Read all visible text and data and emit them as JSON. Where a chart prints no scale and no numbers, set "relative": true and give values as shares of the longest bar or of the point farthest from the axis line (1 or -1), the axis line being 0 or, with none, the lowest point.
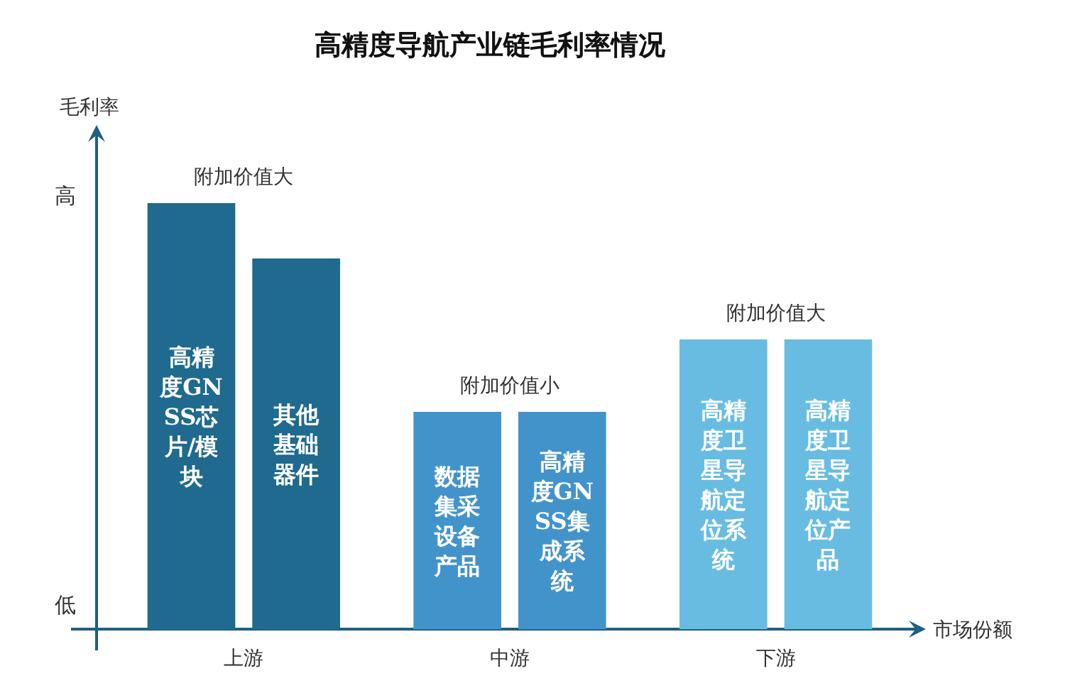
{
  "chart_data": {
    "type": "bar",
    "title": "高精度导航产业链毛利率情况",
    "xlabel": "市场份额",
    "ylabel": "毛利率",
    "relative": true,
    "categories": [
      "高精度GNSS芯片/模块",
      "其他基础器件",
      "数据集采设备产品",
      "高精度GNSS集成系统",
      "高精度卫星导航定位系统",
      "高精度卫星导航定位产品"
    ],
    "values": [
      1,
      0.87,
      0.51,
      0.51,
      0.68,
      0.68
    ],
    "colors": [
      "#1f6a8e",
      "#1f6a8e",
      "#4393cb",
      "#4393cb",
      "#68bce2",
      "#68bce2"
    ],
    "annotations": [
      "上游",
      "中游",
      "下游",
      "附加价值大",
      "附加价值小",
      "附加价值大",
      "高",
      "低"
    ]
  }
}
